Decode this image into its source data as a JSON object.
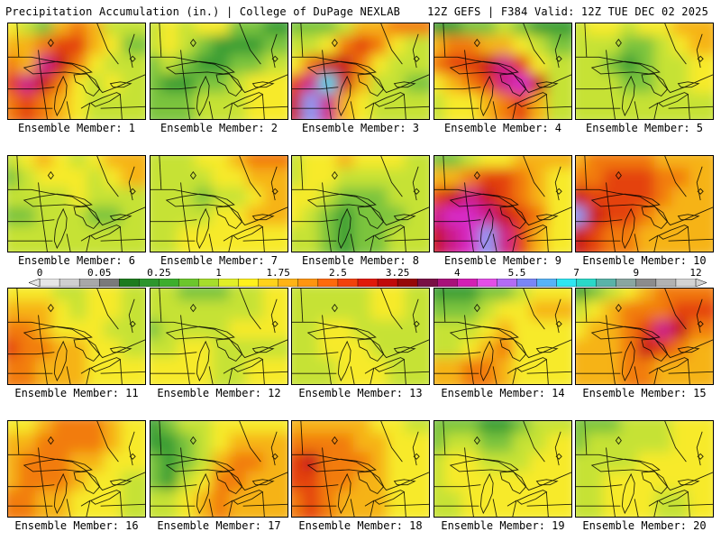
{
  "header": {
    "left": "Precipitation Accumulation (in.) | College of DuPage NEXLAB",
    "right": "12Z GEFS | F384 Valid: 12Z TUE DEC 02 2025"
  },
  "panels": [
    {
      "member": 1,
      "label": "Ensemble Member: 1",
      "field": [
        [
          4,
          3,
          2,
          5,
          6,
          5,
          3,
          3
        ],
        [
          5,
          5,
          6,
          7,
          7,
          5,
          4,
          2
        ],
        [
          6,
          5,
          9,
          8,
          6,
          4,
          3,
          3
        ],
        [
          7,
          9,
          8,
          6,
          4,
          3,
          4,
          3
        ],
        [
          6,
          7,
          6,
          5,
          4,
          3,
          3,
          3
        ]
      ]
    },
    {
      "member": 2,
      "label": "Ensemble Member: 2",
      "field": [
        [
          3,
          4,
          3,
          4,
          4,
          2,
          2,
          1
        ],
        [
          3,
          4,
          3,
          2,
          1,
          1,
          1,
          2
        ],
        [
          2,
          3,
          2,
          1,
          1,
          2,
          2,
          3
        ],
        [
          2,
          1,
          1,
          2,
          2,
          3,
          4,
          4
        ],
        [
          2,
          2,
          2,
          3,
          3,
          3,
          4,
          4
        ]
      ]
    },
    {
      "member": 3,
      "label": "Ensemble Member: 3",
      "field": [
        [
          2,
          2,
          2,
          3,
          5,
          5,
          6,
          6
        ],
        [
          3,
          3,
          4,
          6,
          7,
          6,
          4,
          3
        ],
        [
          4,
          6,
          8,
          8,
          6,
          4,
          3,
          3
        ],
        [
          7,
          9,
          12,
          8,
          5,
          3,
          3,
          2
        ],
        [
          8,
          11,
          9,
          5,
          4,
          3,
          3,
          3
        ]
      ]
    },
    {
      "member": 4,
      "label": "Ensemble Member: 4",
      "field": [
        [
          1,
          1,
          2,
          2,
          3,
          2,
          1,
          1
        ],
        [
          5,
          6,
          6,
          5,
          5,
          4,
          3,
          2
        ],
        [
          6,
          7,
          7,
          8,
          9,
          7,
          4,
          3
        ],
        [
          4,
          5,
          6,
          7,
          9,
          10,
          8,
          3
        ],
        [
          3,
          4,
          4,
          5,
          6,
          7,
          5,
          3
        ]
      ]
    },
    {
      "member": 5,
      "label": "Ensemble Member: 5",
      "field": [
        [
          3,
          4,
          4,
          3,
          4,
          4,
          5,
          5
        ],
        [
          3,
          3,
          3,
          2,
          2,
          3,
          4,
          5
        ],
        [
          3,
          3,
          2,
          1,
          2,
          3,
          3,
          4
        ],
        [
          3,
          3,
          3,
          2,
          2,
          3,
          3,
          4
        ],
        [
          3,
          3,
          3,
          3,
          3,
          3,
          3,
          3
        ]
      ]
    },
    {
      "member": 6,
      "label": "Ensemble Member: 6",
      "field": [
        [
          3,
          4,
          5,
          4,
          3,
          4,
          5,
          5
        ],
        [
          2,
          3,
          4,
          4,
          4,
          3,
          4,
          5
        ],
        [
          3,
          3,
          3,
          3,
          4,
          3,
          3,
          3
        ],
        [
          2,
          2,
          3,
          3,
          3,
          2,
          2,
          3
        ],
        [
          3,
          3,
          3,
          3,
          3,
          3,
          3,
          3
        ]
      ]
    },
    {
      "member": 7,
      "label": "Ensemble Member: 7",
      "field": [
        [
          3,
          3,
          3,
          4,
          4,
          5,
          6,
          6
        ],
        [
          3,
          3,
          3,
          3,
          4,
          4,
          5,
          5
        ],
        [
          3,
          3,
          3,
          2,
          3,
          3,
          4,
          5
        ],
        [
          3,
          3,
          3,
          3,
          4,
          4,
          5,
          5
        ],
        [
          3,
          3,
          4,
          4,
          4,
          4,
          4,
          4
        ]
      ]
    },
    {
      "member": 8,
      "label": "Ensemble Member: 8",
      "field": [
        [
          3,
          4,
          4,
          5,
          4,
          4,
          4,
          3
        ],
        [
          3,
          4,
          4,
          3,
          3,
          3,
          3,
          3
        ],
        [
          4,
          4,
          3,
          2,
          2,
          2,
          3,
          3
        ],
        [
          4,
          3,
          2,
          1,
          2,
          2,
          2,
          3
        ],
        [
          3,
          3,
          2,
          1,
          2,
          2,
          3,
          3
        ]
      ]
    },
    {
      "member": 9,
      "label": "Ensemble Member: 9",
      "field": [
        [
          2,
          2,
          3,
          4,
          4,
          5,
          5,
          5
        ],
        [
          5,
          5,
          6,
          7,
          7,
          6,
          5,
          4
        ],
        [
          7,
          8,
          9,
          8,
          7,
          6,
          5,
          4
        ],
        [
          9,
          10,
          10,
          9,
          8,
          7,
          6,
          4
        ],
        [
          8,
          9,
          10,
          11,
          9,
          7,
          5,
          4
        ]
      ]
    },
    {
      "member": 10,
      "label": "Ensemble Member: 10",
      "field": [
        [
          5,
          6,
          6,
          6,
          6,
          5,
          5,
          5
        ],
        [
          6,
          6,
          7,
          7,
          7,
          6,
          6,
          5
        ],
        [
          8,
          7,
          7,
          7,
          7,
          6,
          5,
          5
        ],
        [
          11,
          8,
          7,
          7,
          6,
          5,
          5,
          5
        ],
        [
          8,
          7,
          6,
          6,
          5,
          5,
          5,
          5
        ]
      ]
    },
    {
      "member": 11,
      "label": "Ensemble Member: 11",
      "field": [
        [
          4,
          4,
          4,
          3,
          3,
          4,
          4,
          3
        ],
        [
          5,
          5,
          5,
          4,
          3,
          4,
          4,
          3
        ],
        [
          6,
          6,
          5,
          4,
          4,
          4,
          3,
          3
        ],
        [
          7,
          6,
          6,
          5,
          5,
          4,
          4,
          3
        ],
        [
          6,
          6,
          5,
          5,
          5,
          4,
          4,
          4
        ]
      ]
    },
    {
      "member": 12,
      "label": "Ensemble Member: 12",
      "field": [
        [
          3,
          3,
          2,
          2,
          2,
          3,
          3,
          4
        ],
        [
          3,
          3,
          3,
          3,
          3,
          3,
          3,
          4
        ],
        [
          2,
          3,
          3,
          3,
          3,
          4,
          4,
          4
        ],
        [
          3,
          3,
          4,
          4,
          3,
          3,
          3,
          3
        ],
        [
          4,
          4,
          4,
          4,
          3,
          3,
          4,
          4
        ]
      ]
    },
    {
      "member": 13,
      "label": "Ensemble Member: 13",
      "field": [
        [
          3,
          3,
          3,
          3,
          3,
          4,
          4,
          3
        ],
        [
          3,
          3,
          3,
          3,
          3,
          4,
          4,
          3
        ],
        [
          3,
          3,
          4,
          4,
          3,
          3,
          3,
          3
        ],
        [
          3,
          3,
          4,
          4,
          4,
          3,
          3,
          3
        ],
        [
          3,
          3,
          3,
          4,
          4,
          4,
          3,
          3
        ]
      ]
    },
    {
      "member": 14,
      "label": "Ensemble Member: 14",
      "field": [
        [
          1,
          1,
          1,
          2,
          2,
          3,
          4,
          4
        ],
        [
          2,
          2,
          2,
          3,
          4,
          4,
          5,
          5
        ],
        [
          3,
          3,
          3,
          4,
          5,
          4,
          4,
          4
        ],
        [
          3,
          3,
          4,
          5,
          6,
          4,
          4,
          4
        ],
        [
          5,
          5,
          6,
          6,
          5,
          4,
          4,
          4
        ]
      ]
    },
    {
      "member": 15,
      "label": "Ensemble Member: 15",
      "field": [
        [
          1,
          2,
          3,
          4,
          5,
          6,
          6,
          6
        ],
        [
          3,
          4,
          5,
          6,
          6,
          6,
          7,
          7
        ],
        [
          4,
          5,
          5,
          6,
          7,
          9,
          8,
          6
        ],
        [
          5,
          5,
          5,
          6,
          8,
          7,
          6,
          5
        ],
        [
          5,
          5,
          5,
          6,
          6,
          5,
          5,
          5
        ]
      ]
    },
    {
      "member": 16,
      "label": "Ensemble Member: 16",
      "field": [
        [
          4,
          4,
          5,
          6,
          6,
          6,
          5,
          4
        ],
        [
          5,
          5,
          6,
          6,
          6,
          6,
          5,
          4
        ],
        [
          5,
          6,
          6,
          6,
          5,
          5,
          4,
          4
        ],
        [
          5,
          6,
          6,
          6,
          5,
          4,
          4,
          3
        ],
        [
          6,
          6,
          5,
          5,
          4,
          4,
          4,
          3
        ]
      ]
    },
    {
      "member": 17,
      "label": "Ensemble Member: 17",
      "field": [
        [
          1,
          2,
          3,
          3,
          4,
          4,
          4,
          4
        ],
        [
          1,
          1,
          2,
          3,
          4,
          5,
          5,
          5
        ],
        [
          2,
          1,
          2,
          3,
          5,
          6,
          6,
          5
        ],
        [
          2,
          1,
          3,
          4,
          6,
          6,
          5,
          5
        ],
        [
          3,
          3,
          4,
          5,
          6,
          5,
          5,
          5
        ]
      ]
    },
    {
      "member": 18,
      "label": "Ensemble Member: 18",
      "field": [
        [
          5,
          5,
          5,
          5,
          5,
          4,
          4,
          3
        ],
        [
          6,
          6,
          6,
          6,
          5,
          5,
          4,
          4
        ],
        [
          7,
          8,
          6,
          6,
          6,
          5,
          4,
          4
        ],
        [
          7,
          7,
          6,
          6,
          5,
          5,
          4,
          4
        ],
        [
          6,
          7,
          6,
          5,
          5,
          5,
          4,
          4
        ]
      ]
    },
    {
      "member": 19,
      "label": "Ensemble Member: 19",
      "field": [
        [
          2,
          2,
          2,
          1,
          1,
          2,
          3,
          3
        ],
        [
          2,
          3,
          3,
          2,
          2,
          3,
          3,
          4
        ],
        [
          3,
          4,
          4,
          3,
          3,
          3,
          4,
          4
        ],
        [
          3,
          4,
          4,
          4,
          4,
          4,
          4,
          4
        ],
        [
          3,
          3,
          4,
          4,
          4,
          4,
          4,
          4
        ]
      ]
    },
    {
      "member": 20,
      "label": "Ensemble Member: 20",
      "field": [
        [
          2,
          2,
          2,
          3,
          3,
          3,
          4,
          4
        ],
        [
          2,
          3,
          3,
          3,
          3,
          3,
          4,
          4
        ],
        [
          3,
          3,
          3,
          3,
          4,
          4,
          4,
          4
        ],
        [
          3,
          3,
          4,
          4,
          4,
          4,
          4,
          4
        ],
        [
          3,
          3,
          4,
          4,
          4,
          3,
          3,
          4
        ]
      ]
    }
  ],
  "colorbar": {
    "tick_labels": [
      "0",
      "0.05",
      "0.25",
      "1",
      "1.75",
      "2.5",
      "3.25",
      "4",
      "5.5",
      "7",
      "9",
      "12"
    ],
    "tick_values": [
      0,
      0.05,
      0.25,
      1,
      1.75,
      2.5,
      3.25,
      4,
      5.5,
      7,
      9,
      12
    ],
    "colors": [
      "#e6e6e6",
      "#cfcfcf",
      "#a8a8a8",
      "#7a7a7a",
      "#1e7b1e",
      "#2d962d",
      "#3dae2d",
      "#6cc62c",
      "#a6dd2c",
      "#e2ef28",
      "#fff11c",
      "#ffd21a",
      "#ffb316",
      "#ff9510",
      "#ff6a0c",
      "#f2420b",
      "#e01a0a",
      "#c00a0a",
      "#960808",
      "#781045",
      "#a8127a",
      "#d320b4",
      "#e34ee8",
      "#b36cf5",
      "#7a86f7",
      "#57b3f7",
      "#2ee6f2",
      "#2ad9c8",
      "#5ab3a8",
      "#8aa6a0",
      "#8c8c8c",
      "#b2b2b2",
      "#d3d3d3"
    ]
  },
  "map_colors": {
    "levels": [
      "#1f7d1f",
      "#3a9e34",
      "#7cc43c",
      "#c6e236",
      "#f7ea2c",
      "#f6b319",
      "#f27c11",
      "#e4430e",
      "#c81414",
      "#cc1d8c",
      "#d72cc8",
      "#8b9af4",
      "#2fd8f0"
    ],
    "lines": "#000000"
  }
}
